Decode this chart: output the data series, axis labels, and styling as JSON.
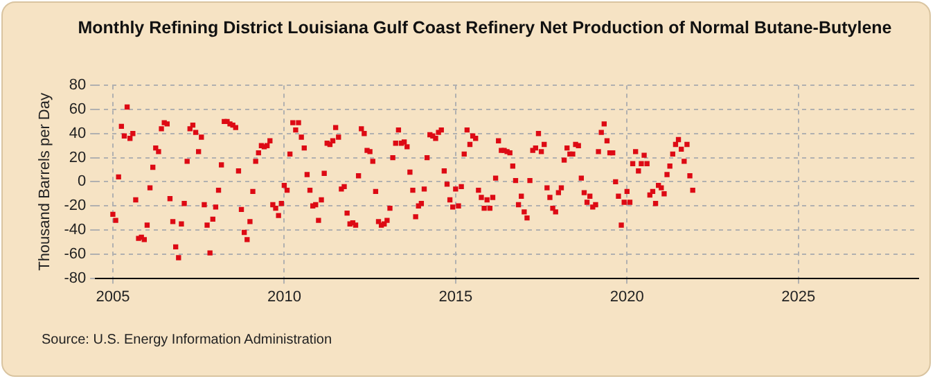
{
  "chart_data": {
    "type": "scatter",
    "title": "Monthly Refining District Louisiana Gulf Coast Refinery Net Production of Normal Butane-Butylene",
    "ylabel": "Thousand Barrels per Day",
    "annotations": [
      "Source: U.S. Energy Information Administration"
    ],
    "xlim": [
      "2004-07",
      "2028-07"
    ],
    "xticks": [
      "2005",
      "2010",
      "2015",
      "2020",
      "2025"
    ],
    "ylim": [
      -80,
      80
    ],
    "yticks": [
      -80,
      -60,
      -40,
      -20,
      0,
      20,
      40,
      60,
      80
    ],
    "grid": true,
    "marker": "square",
    "legend": false,
    "x": [
      "2005-01",
      "2005-02",
      "2005-03",
      "2005-04",
      "2005-05",
      "2005-06",
      "2005-07",
      "2005-08",
      "2005-09",
      "2005-10",
      "2005-11",
      "2005-12",
      "2006-01",
      "2006-02",
      "2006-03",
      "2006-04",
      "2006-05",
      "2006-06",
      "2006-07",
      "2006-08",
      "2006-09",
      "2006-10",
      "2006-11",
      "2006-12",
      "2007-01",
      "2007-02",
      "2007-03",
      "2007-04",
      "2007-05",
      "2007-06",
      "2007-07",
      "2007-08",
      "2007-09",
      "2007-10",
      "2007-11",
      "2007-12",
      "2008-01",
      "2008-02",
      "2008-03",
      "2008-04",
      "2008-05",
      "2008-06",
      "2008-07",
      "2008-08",
      "2008-09",
      "2008-10",
      "2008-11",
      "2008-12",
      "2009-01",
      "2009-02",
      "2009-03",
      "2009-04",
      "2009-05",
      "2009-06",
      "2009-07",
      "2009-08",
      "2009-09",
      "2009-10",
      "2009-11",
      "2009-12",
      "2010-01",
      "2010-02",
      "2010-03",
      "2010-04",
      "2010-05",
      "2010-06",
      "2010-07",
      "2010-08",
      "2010-09",
      "2010-10",
      "2010-11",
      "2010-12",
      "2011-01",
      "2011-02",
      "2011-03",
      "2011-04",
      "2011-05",
      "2011-06",
      "2011-07",
      "2011-08",
      "2011-09",
      "2011-10",
      "2011-11",
      "2011-12",
      "2012-01",
      "2012-02",
      "2012-03",
      "2012-04",
      "2012-05",
      "2012-06",
      "2012-07",
      "2012-08",
      "2012-09",
      "2012-10",
      "2012-11",
      "2012-12",
      "2013-01",
      "2013-02",
      "2013-03",
      "2013-04",
      "2013-05",
      "2013-06",
      "2013-07",
      "2013-08",
      "2013-09",
      "2013-10",
      "2013-11",
      "2013-12",
      "2014-01",
      "2014-02",
      "2014-03",
      "2014-04",
      "2014-05",
      "2014-06",
      "2014-07",
      "2014-08",
      "2014-09",
      "2014-10",
      "2014-11",
      "2014-12",
      "2015-01",
      "2015-02",
      "2015-03",
      "2015-04",
      "2015-05",
      "2015-06",
      "2015-07",
      "2015-08",
      "2015-09",
      "2015-10",
      "2015-11",
      "2015-12",
      "2016-01",
      "2016-02",
      "2016-03",
      "2016-04",
      "2016-05",
      "2016-06",
      "2016-07",
      "2016-08",
      "2016-09",
      "2016-10",
      "2016-11",
      "2016-12",
      "2017-01",
      "2017-02",
      "2017-03",
      "2017-04",
      "2017-05",
      "2017-06",
      "2017-07",
      "2017-08",
      "2017-09",
      "2017-10",
      "2017-11",
      "2017-12",
      "2018-01",
      "2018-02",
      "2018-03",
      "2018-04",
      "2018-05",
      "2018-06",
      "2018-07",
      "2018-08",
      "2018-09",
      "2018-10",
      "2018-11",
      "2018-12",
      "2019-01",
      "2019-02",
      "2019-03",
      "2019-04",
      "2019-05",
      "2019-06",
      "2019-07",
      "2019-08",
      "2019-09",
      "2019-10",
      "2019-11",
      "2019-12",
      "2020-01",
      "2020-02",
      "2020-03",
      "2020-04",
      "2020-05",
      "2020-06",
      "2020-07",
      "2020-08",
      "2020-09",
      "2020-10",
      "2020-11",
      "2020-12",
      "2021-01",
      "2021-02",
      "2021-03",
      "2021-04",
      "2021-05",
      "2021-06",
      "2021-07",
      "2021-08",
      "2021-09",
      "2021-10",
      "2021-11",
      "2021-12"
    ],
    "series": [
      {
        "color": "#dd0a14",
        "values": [
          -27,
          -32,
          4,
          46,
          38,
          62,
          36,
          40,
          -15,
          -47,
          -46,
          -48,
          -36,
          -5,
          12,
          28,
          25,
          44,
          49,
          48,
          -14,
          -33,
          -54,
          -63,
          -35,
          -18,
          17,
          44,
          47,
          41,
          25,
          37,
          -19,
          -36,
          -59,
          -31,
          -21,
          -7,
          14,
          50,
          50,
          48,
          47,
          45,
          9,
          -23,
          -42,
          -48,
          -33,
          -8,
          17,
          24,
          30,
          29,
          30,
          34,
          -19,
          -22,
          -28,
          -18,
          -3,
          -7,
          23,
          49,
          43,
          49,
          37,
          28,
          6,
          -7,
          -20,
          -19,
          -32,
          -15,
          7,
          32,
          31,
          34,
          45,
          37,
          -6,
          -4,
          -26,
          -35,
          -34,
          -36,
          5,
          44,
          40,
          26,
          25,
          17,
          -8,
          -33,
          -36,
          -35,
          -32,
          -22,
          20,
          32,
          43,
          32,
          33,
          29,
          8,
          -7,
          -29,
          -20,
          -18,
          -6,
          20,
          39,
          38,
          36,
          41,
          43,
          9,
          -2,
          -15,
          -21,
          -6,
          -20,
          -4,
          23,
          43,
          31,
          38,
          36,
          -7,
          -13,
          -22,
          -15,
          -22,
          -13,
          3,
          34,
          26,
          26,
          25,
          24,
          13,
          1,
          -19,
          -12,
          -25,
          -30,
          1,
          26,
          28,
          40,
          25,
          31,
          -5,
          -13,
          -22,
          -25,
          -9,
          -5,
          18,
          28,
          23,
          23,
          31,
          30,
          3,
          -9,
          -17,
          -12,
          -21,
          -19,
          25,
          41,
          48,
          34,
          24,
          24,
          0,
          -12,
          -36,
          -17,
          -8,
          -17,
          15,
          25,
          9,
          15,
          22,
          15,
          -11,
          -8,
          -18,
          -3,
          -5,
          -10,
          6,
          13,
          23,
          31,
          35,
          27,
          17,
          31,
          5,
          -7
        ]
      }
    ]
  }
}
